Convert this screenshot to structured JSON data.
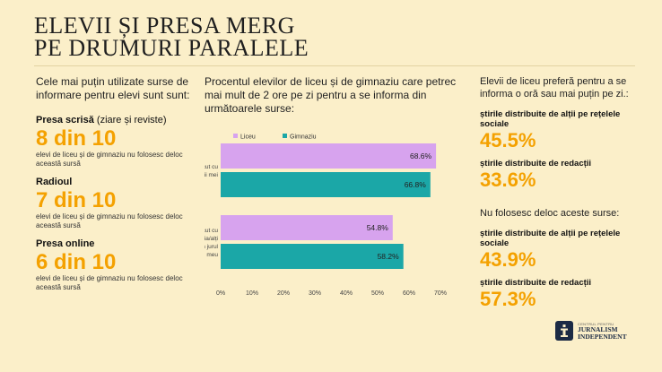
{
  "title": {
    "line1": "Elevii și presa merg",
    "line2": "pe drumuri paralele"
  },
  "left": {
    "intro": "Cele mai puțin utilizate surse de informare pentru elevi sunt sunt:",
    "stats": [
      {
        "label": "Presa scrisă",
        "note": " (ziare și reviste)",
        "value": "8 din 10",
        "desc": "elevi de liceu și de gimnaziu nu folosesc deloc această sursă"
      },
      {
        "label": "Radioul",
        "note": "",
        "value": "7 din 10",
        "desc": "elevi de liceu și de gimnaziu nu folosesc deloc această sursă"
      },
      {
        "label": "Presa online",
        "note": "",
        "value": "6 din 10",
        "desc": "elevi de liceu și de gimnaziu nu folosesc deloc această sursă"
      }
    ]
  },
  "middle": {
    "description": "Procentul elevilor de liceu și de gimnaziu care petrec mai mult de 2 ore pe zi pentru a se informa din următoarele surse:"
  },
  "chart_data": {
    "type": "bar",
    "orientation": "horizontal",
    "categories": [
      [
        "Discut cu",
        "prietenii mei"
      ],
      [
        "Discut cu",
        "familia/alți",
        "adulți din jurul",
        "meu"
      ]
    ],
    "series": [
      {
        "name": "Liceu",
        "color": "#d7a3ee",
        "values": [
          68.6,
          54.8
        ],
        "labels": [
          "68.6%",
          "54.8%"
        ]
      },
      {
        "name": "Gimnaziu",
        "color": "#1ba7a7",
        "values": [
          66.8,
          58.2
        ],
        "labels": [
          "66.8%",
          "58.2%"
        ]
      }
    ],
    "xlim": [
      0,
      70
    ],
    "xticks": [
      "0%",
      "10%",
      "20%",
      "30%",
      "40%",
      "50%",
      "60%",
      "70%"
    ],
    "legend": "top-left",
    "grid": false
  },
  "right": {
    "heading1": "Elevii de liceu preferă pentru a se informa o oră sau mai puțin pe zi.:",
    "group1": [
      {
        "label": "știrile distribuite de alții pe rețelele sociale",
        "value": "45.5%"
      },
      {
        "label": "știrile distribuite de redacții",
        "value": "33.6%"
      }
    ],
    "heading2": "Nu folosesc deloc aceste surse:",
    "group2": [
      {
        "label": "știrile distribuite de alții pe rețelele sociale",
        "value": "43.9%"
      },
      {
        "label": "știrile distribuite de redacții",
        "value": "57.3%"
      }
    ]
  },
  "logo": {
    "small": "Centrul pentru",
    "line1": "Jurnalism",
    "line2": "Independent"
  },
  "colors": {
    "background": "#fbefc9",
    "accent": "#f4a100",
    "liceu": "#d7a3ee",
    "gimnaziu": "#1ba7a7",
    "logo": "#1c2b45"
  }
}
